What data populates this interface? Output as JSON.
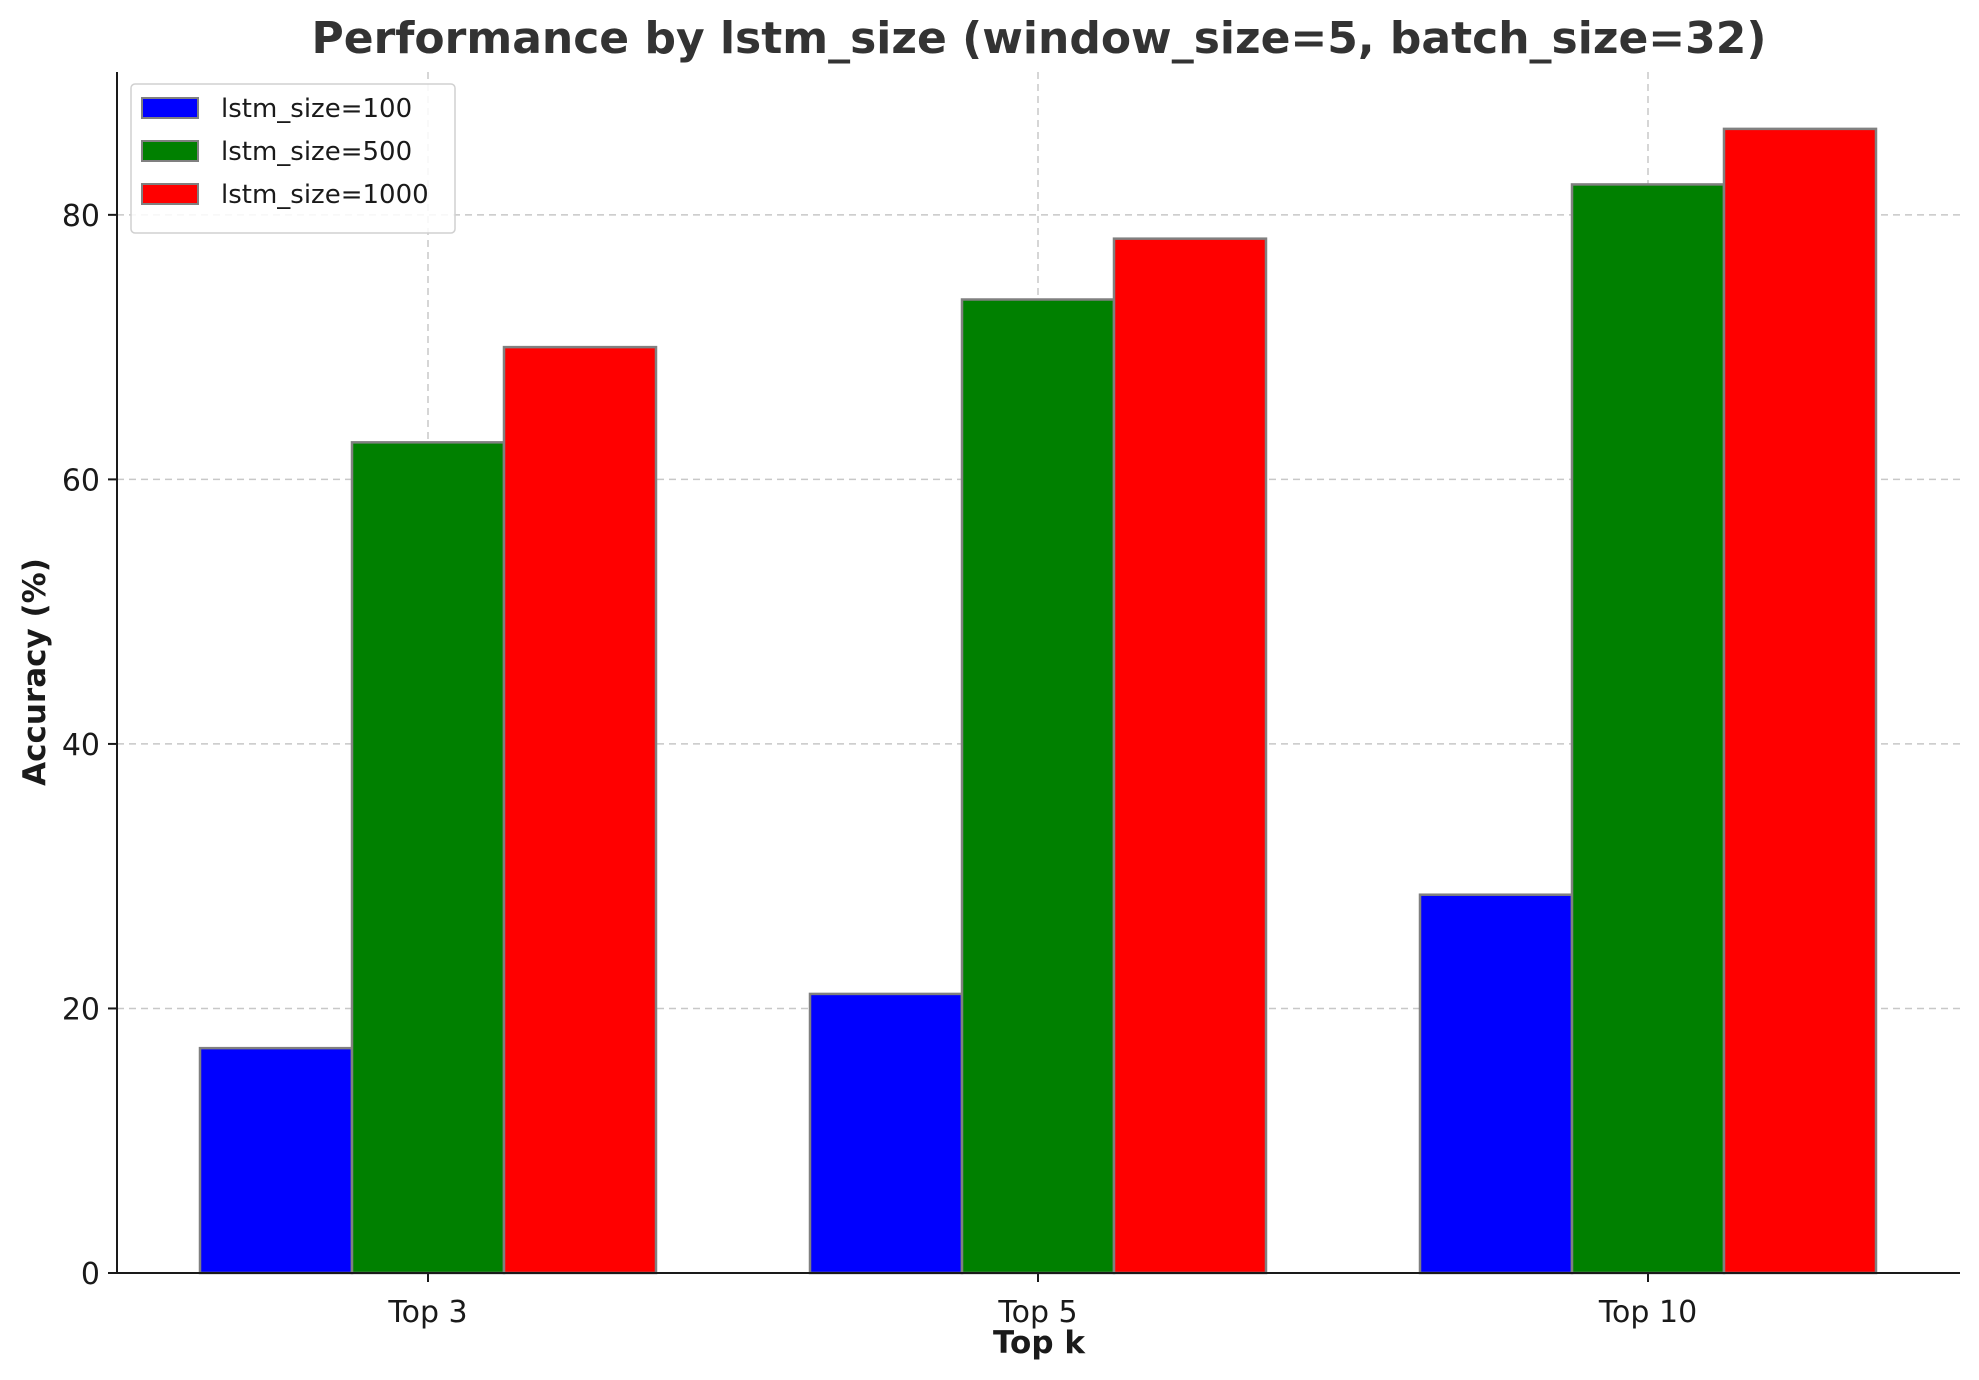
{
  "chart_data": {
    "type": "bar",
    "title": "Performance by lstm_size (window_size=5, batch_size=32)",
    "xlabel": "Top k",
    "ylabel": "Accuracy (%)",
    "categories": [
      "Top 3",
      "Top 5",
      "Top 10"
    ],
    "series": [
      {
        "name": "lstm_size=100",
        "color": "#0000ff",
        "values": [
          17.0,
          21.1,
          28.6
        ]
      },
      {
        "name": "lstm_size=500",
        "color": "#008000",
        "values": [
          62.8,
          73.6,
          82.3
        ]
      },
      {
        "name": "lstm_size=1000",
        "color": "#ff0000",
        "values": [
          70.0,
          78.2,
          86.5
        ]
      }
    ],
    "ylim": [
      0,
      90.8
    ],
    "yticks": [
      0,
      20,
      40,
      60,
      80
    ],
    "grid": true,
    "legend_position": "top-left",
    "bar_edge_color": "#808080"
  }
}
